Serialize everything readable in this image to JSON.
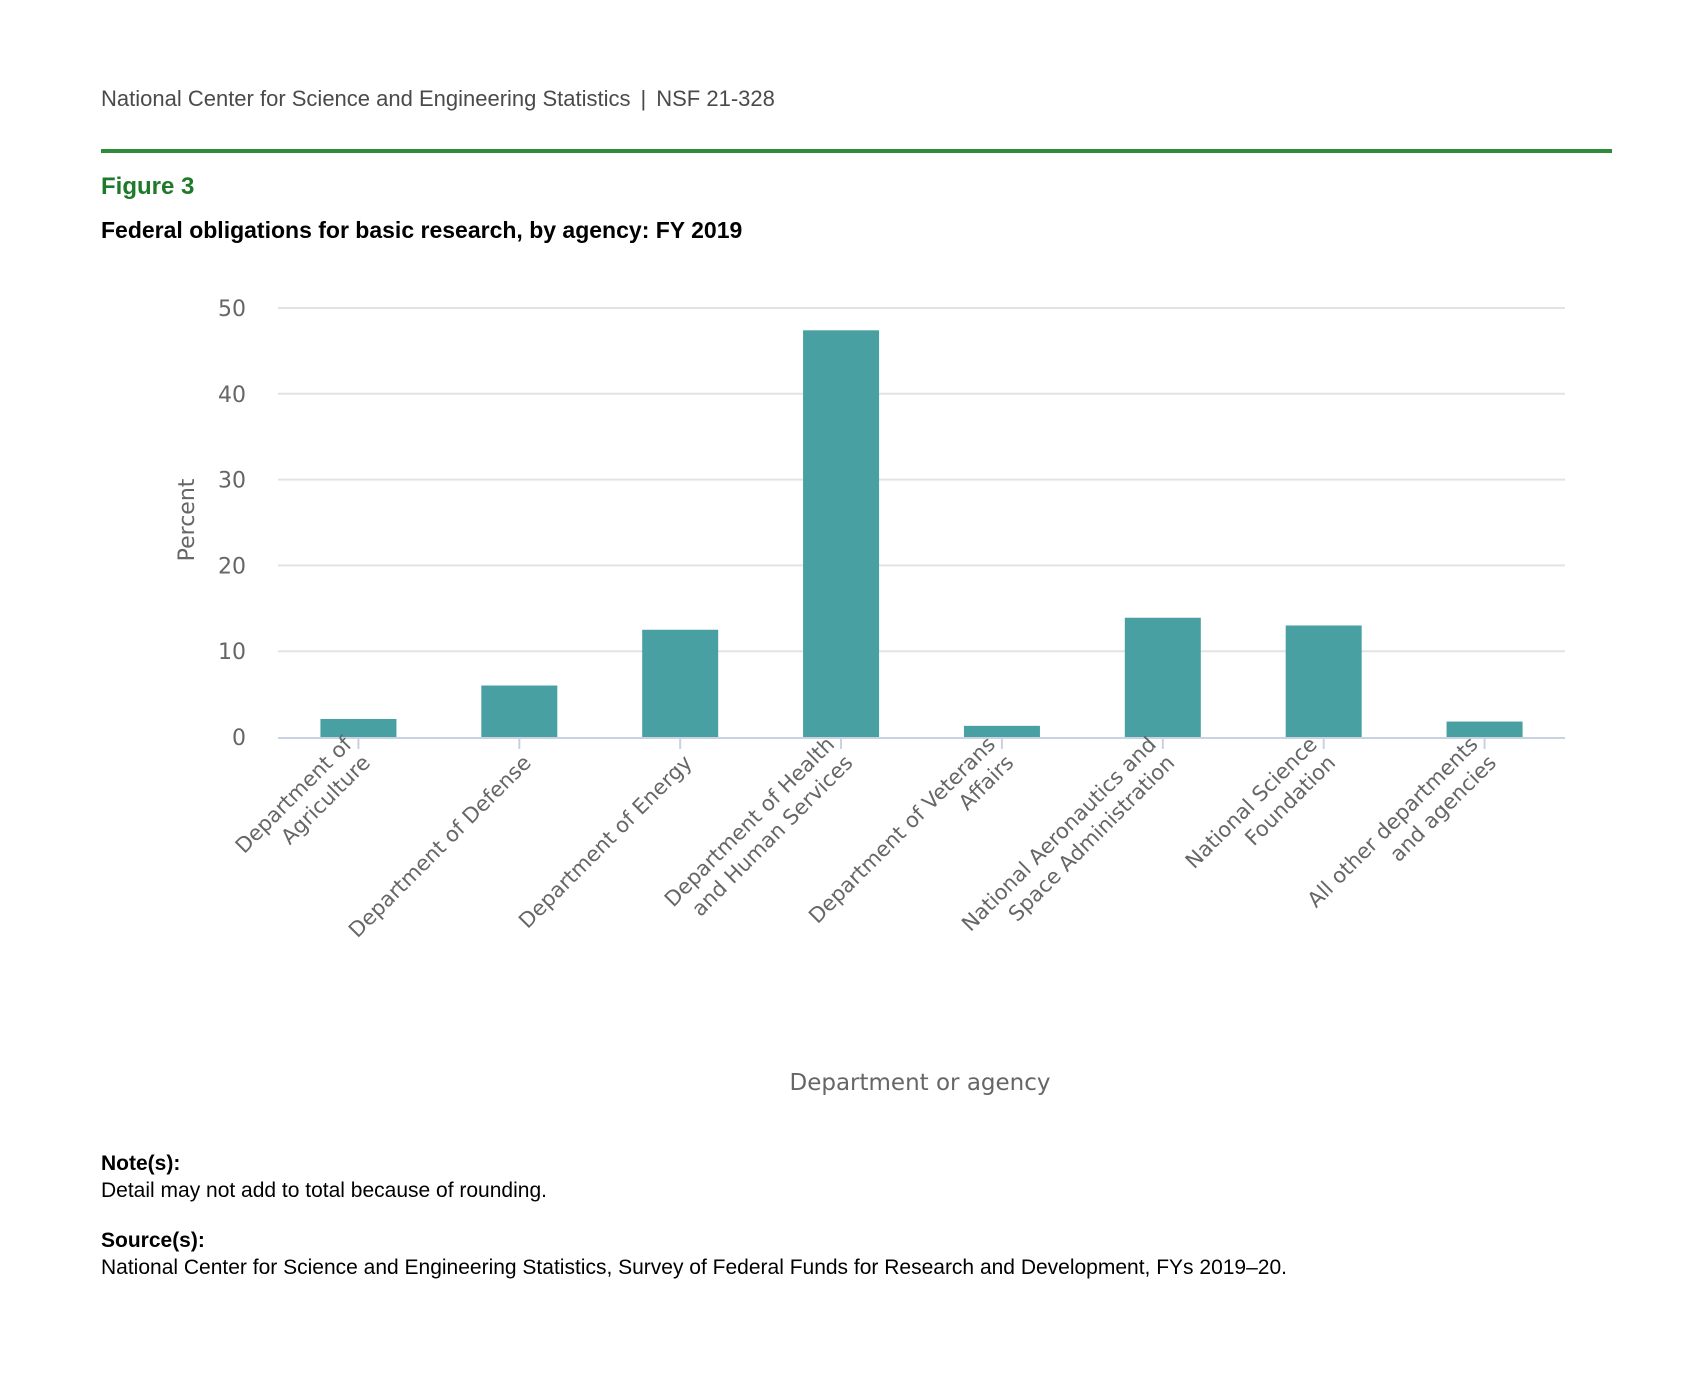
{
  "header": {
    "org": "National Center for Science and Engineering Statistics",
    "separator": "|",
    "report_id": "NSF 21-328"
  },
  "figure": {
    "label": "Figure 3",
    "title": "Federal obligations for basic research, by agency: FY 2019"
  },
  "colors": {
    "bar": "#48a0a2",
    "rule": "#2e8b3a",
    "figure_label": "#1e7a2a",
    "grid": "#e3e3e3",
    "axis_line": "#c8d2e0",
    "tick_text": "#666666"
  },
  "chart_data": {
    "type": "bar",
    "title": "Federal obligations for basic research, by agency: FY 2019",
    "xlabel": "Department or agency",
    "ylabel": "Percent",
    "ylim": [
      0,
      50
    ],
    "yticks": [
      0,
      10,
      20,
      30,
      40,
      50
    ],
    "grid": true,
    "categories": [
      [
        "Department of",
        "Agriculture"
      ],
      [
        "Department of Defense"
      ],
      [
        "Department of Energy"
      ],
      [
        "Department of Health",
        "and Human Services"
      ],
      [
        "Department of Veterans",
        "Affairs"
      ],
      [
        "National Aeronautics and",
        "Space Administration"
      ],
      [
        "National Science",
        "Foundation"
      ],
      [
        "All other departments",
        "and agencies"
      ]
    ],
    "values": [
      2.1,
      6.0,
      12.5,
      47.4,
      1.3,
      13.9,
      13.0,
      1.8
    ]
  },
  "notes": {
    "heading": "Note(s):",
    "text": "Detail may not add to total because of rounding."
  },
  "source": {
    "heading": "Source(s):",
    "text": "National Center for Science and Engineering Statistics, Survey of Federal Funds for Research and Development, FYs 2019–20."
  }
}
